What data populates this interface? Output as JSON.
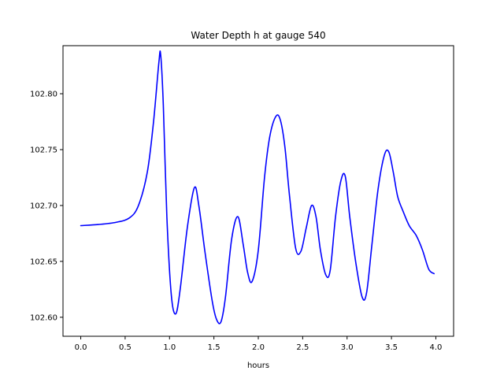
{
  "chart_data": {
    "type": "line",
    "title": "Water Depth h at gauge 540",
    "xlabel": "hours",
    "ylabel": "",
    "xlim": [
      -0.2,
      4.2
    ],
    "ylim": [
      102.583,
      102.843
    ],
    "xticks": [
      0.0,
      0.5,
      1.0,
      1.5,
      2.0,
      2.5,
      3.0,
      3.5,
      4.0
    ],
    "xtick_labels": [
      "0.0",
      "0.5",
      "1.0",
      "1.5",
      "2.0",
      "2.5",
      "3.0",
      "3.5",
      "4.0"
    ],
    "yticks": [
      102.6,
      102.65,
      102.7,
      102.75,
      102.8
    ],
    "ytick_labels": [
      "102.60",
      "102.65",
      "102.70",
      "102.75",
      "102.80"
    ],
    "grid": false,
    "series": [
      {
        "color": "#0000ff",
        "x": [
          0.0,
          0.2,
          0.4,
          0.55,
          0.65,
          0.75,
          0.82,
          0.88,
          0.9,
          0.93,
          0.97,
          1.02,
          1.07,
          1.12,
          1.2,
          1.28,
          1.33,
          1.4,
          1.48,
          1.53,
          1.58,
          1.63,
          1.7,
          1.77,
          1.83,
          1.88,
          1.93,
          2.0,
          2.07,
          2.13,
          2.2,
          2.25,
          2.3,
          2.35,
          2.42,
          2.48,
          2.54,
          2.6,
          2.65,
          2.7,
          2.76,
          2.81,
          2.87,
          2.93,
          2.98,
          3.03,
          3.1,
          3.17,
          3.22,
          3.28,
          3.35,
          3.42,
          3.47,
          3.52,
          3.57,
          3.63,
          3.7,
          3.78,
          3.85,
          3.92,
          3.98
        ],
        "values": [
          102.682,
          102.683,
          102.685,
          102.689,
          102.7,
          102.73,
          102.775,
          102.828,
          102.835,
          102.79,
          102.69,
          102.62,
          102.603,
          102.625,
          102.68,
          102.716,
          102.7,
          102.658,
          102.615,
          102.598,
          102.596,
          102.618,
          102.67,
          102.69,
          102.665,
          102.64,
          102.632,
          102.66,
          102.725,
          102.762,
          102.78,
          102.776,
          102.752,
          102.71,
          102.662,
          102.659,
          102.68,
          102.7,
          102.69,
          102.66,
          102.638,
          102.642,
          102.69,
          102.722,
          102.726,
          102.69,
          102.648,
          102.618,
          102.622,
          102.665,
          102.715,
          102.745,
          102.748,
          102.73,
          102.708,
          102.695,
          102.682,
          102.673,
          102.66,
          102.643,
          102.639
        ]
      }
    ]
  }
}
